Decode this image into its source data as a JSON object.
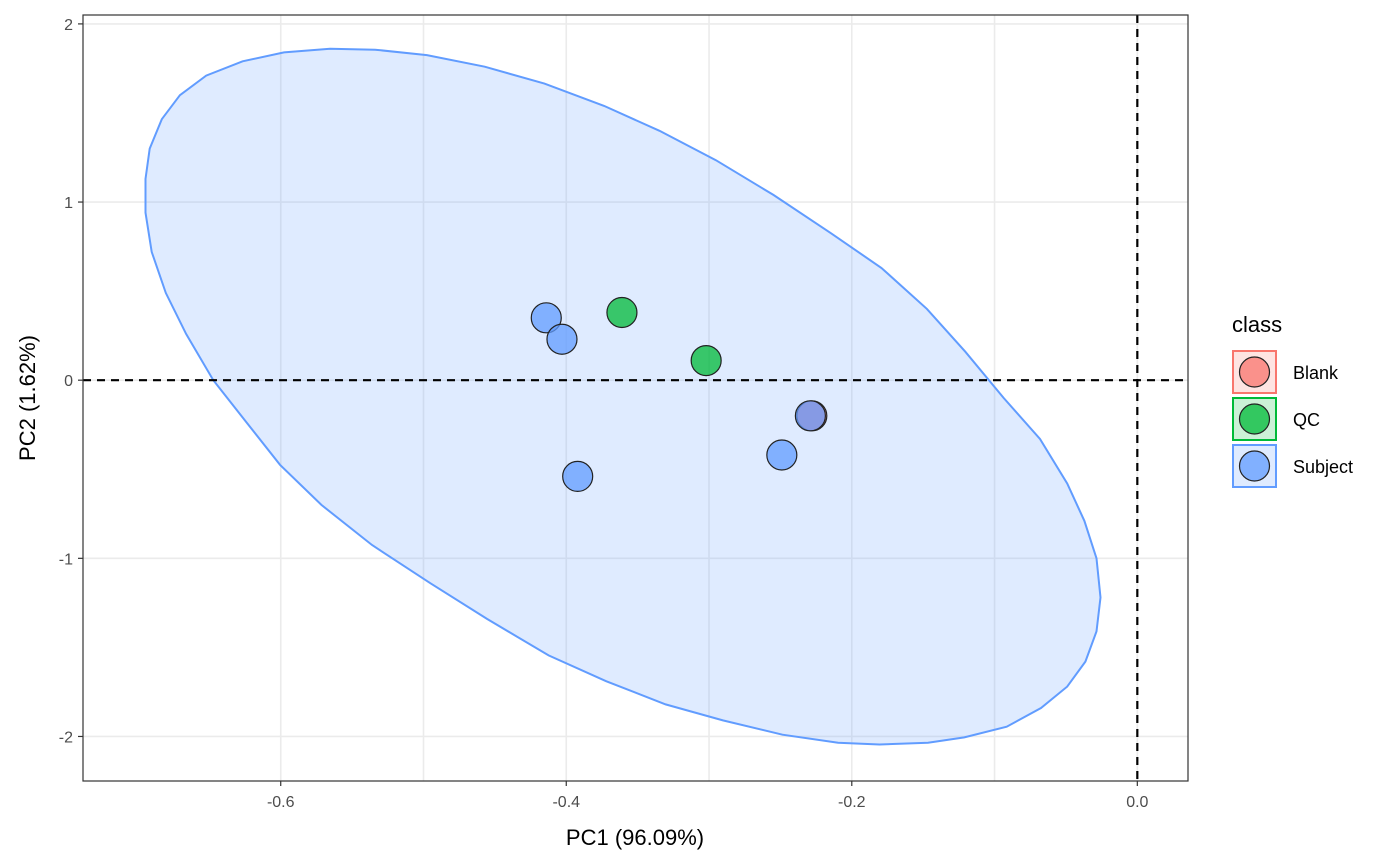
{
  "chart_data": {
    "type": "scatter",
    "xlabel": "PC1 (96.09%)",
    "ylabel": "PC2 (1.62%)",
    "xlim": [
      -0.7385,
      0.0355
    ],
    "ylim": [
      -2.25,
      2.05
    ],
    "xticks": [
      -0.6,
      -0.4,
      -0.2,
      0.0
    ],
    "xtick_labels": [
      "-0.6",
      "-0.4",
      "-0.2",
      "0.0"
    ],
    "yticks": [
      -2,
      -1,
      0,
      1,
      2
    ],
    "ytick_labels": [
      "-2",
      "-1",
      "0",
      "1",
      "2"
    ],
    "grid": true,
    "reference_lines": {
      "x": 0,
      "y": 0,
      "style": "dashed"
    },
    "legend": {
      "title": "class",
      "position": "right",
      "entries": [
        {
          "label": "Blank",
          "color": "#F8766D"
        },
        {
          "label": "QC",
          "color": "#00BA38"
        },
        {
          "label": "Subject",
          "color": "#619CFF"
        }
      ]
    },
    "series": [
      {
        "name": "Blank",
        "color": "#F8766D",
        "points": [
          {
            "x": -0.228,
            "y": -0.2
          }
        ]
      },
      {
        "name": "QC",
        "color": "#00BA38",
        "points": [
          {
            "x": -0.361,
            "y": 0.38
          },
          {
            "x": -0.302,
            "y": 0.11
          }
        ]
      },
      {
        "name": "Subject",
        "color": "#619CFF",
        "points": [
          {
            "x": -0.414,
            "y": 0.35
          },
          {
            "x": -0.403,
            "y": 0.23
          },
          {
            "x": -0.392,
            "y": -0.54
          },
          {
            "x": -0.249,
            "y": -0.42
          },
          {
            "x": -0.229,
            "y": -0.2
          }
        ]
      }
    ],
    "ellipse": {
      "group": "Subject",
      "color": "#619CFF",
      "fill_opacity": 0.2,
      "outline": [
        [
          -0.5654,
          1.86
        ],
        [
          -0.5339,
          1.855
        ],
        [
          -0.4976,
          1.825
        ],
        [
          -0.4571,
          1.76
        ],
        [
          -0.4153,
          1.665
        ],
        [
          -0.3735,
          1.54
        ],
        [
          -0.3347,
          1.4
        ],
        [
          -0.2952,
          1.235
        ],
        [
          -0.2549,
          1.04
        ],
        [
          -0.2146,
          0.825
        ],
        [
          -0.1792,
          0.63
        ],
        [
          -0.1474,
          0.4
        ],
        [
          -0.1205,
          0.16
        ],
        [
          -0.0936,
          -0.1
        ],
        [
          -0.0682,
          -0.33
        ],
        [
          -0.0491,
          -0.58
        ],
        [
          -0.0371,
          -0.79
        ],
        [
          -0.0286,
          -1.0
        ],
        [
          -0.0258,
          -1.22
        ],
        [
          -0.0286,
          -1.41
        ],
        [
          -0.0364,
          -1.58
        ],
        [
          -0.0491,
          -1.72
        ],
        [
          -0.0675,
          -1.84
        ],
        [
          -0.0915,
          -1.945
        ],
        [
          -0.1212,
          -2.005
        ],
        [
          -0.1466,
          -2.035
        ],
        [
          -0.1806,
          -2.045
        ],
        [
          -0.2096,
          -2.035
        ],
        [
          -0.2485,
          -1.99
        ],
        [
          -0.2903,
          -1.91
        ],
        [
          -0.3304,
          -1.82
        ],
        [
          -0.3721,
          -1.69
        ],
        [
          -0.4124,
          -1.545
        ],
        [
          -0.4555,
          -1.34
        ],
        [
          -0.4951,
          -1.14
        ],
        [
          -0.5361,
          -0.925
        ],
        [
          -0.5715,
          -0.7
        ],
        [
          -0.6005,
          -0.475
        ],
        [
          -0.6246,
          -0.23
        ],
        [
          -0.6472,
          0.0
        ],
        [
          -0.6663,
          0.26
        ],
        [
          -0.6805,
          0.49
        ],
        [
          -0.6904,
          0.72
        ],
        [
          -0.6947,
          0.94
        ],
        [
          -0.6947,
          1.13
        ],
        [
          -0.6918,
          1.3
        ],
        [
          -0.6833,
          1.465
        ],
        [
          -0.6706,
          1.6
        ],
        [
          -0.6522,
          1.71
        ],
        [
          -0.6267,
          1.79
        ],
        [
          -0.5977,
          1.84
        ]
      ]
    }
  }
}
